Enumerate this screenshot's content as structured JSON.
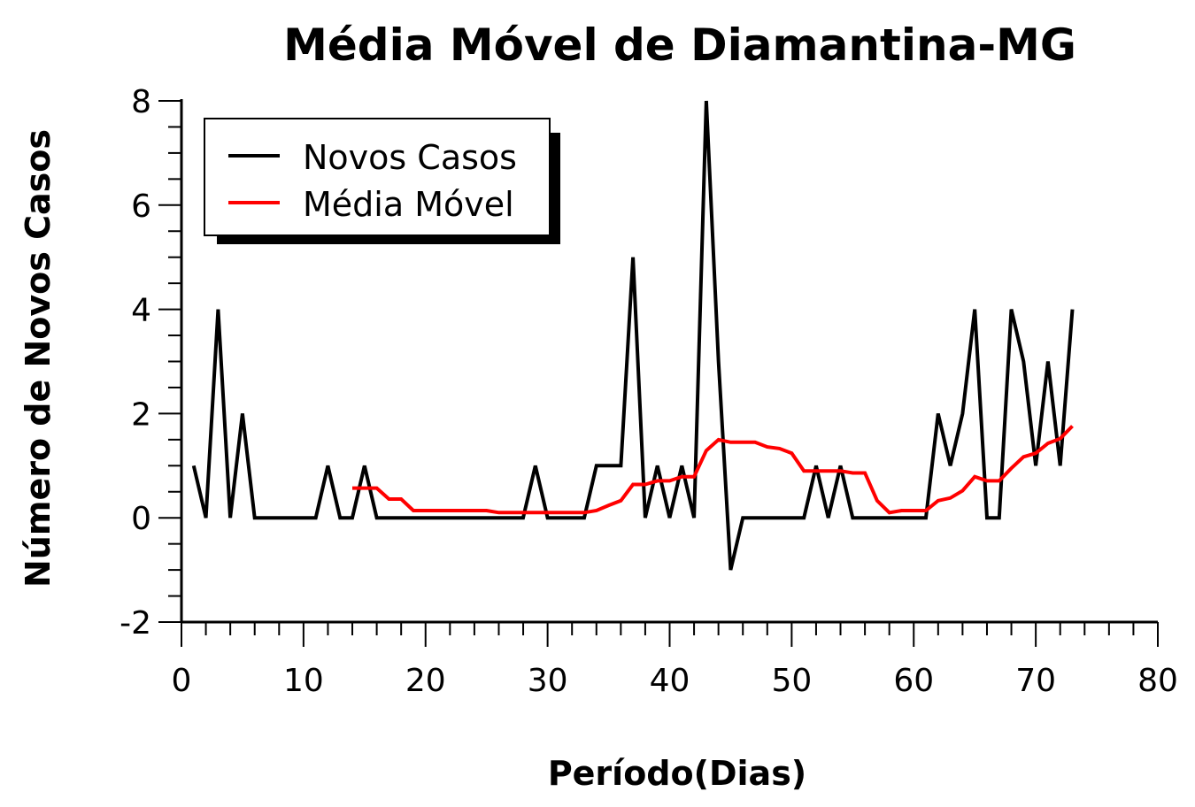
{
  "chart_data": {
    "type": "line",
    "title": "Média Móvel de Diamantina-MG",
    "xlabel": "Período(Dias)",
    "ylabel": "Número de Novos Casos",
    "xlim": [
      0,
      80
    ],
    "ylim": [
      -2,
      8
    ],
    "x_ticks": [
      "0",
      "10",
      "20",
      "30",
      "40",
      "50",
      "60",
      "70",
      "80"
    ],
    "y_ticks": [
      "-2",
      "0",
      "2",
      "4",
      "6",
      "8"
    ],
    "grid": false,
    "legend": {
      "position": "top-left"
    },
    "series": [
      {
        "name": "Novos Casos",
        "color": "#000000",
        "x": [
          1,
          2,
          3,
          4,
          5,
          6,
          7,
          8,
          9,
          10,
          11,
          12,
          13,
          14,
          15,
          16,
          17,
          18,
          19,
          20,
          21,
          22,
          23,
          24,
          25,
          26,
          27,
          28,
          29,
          30,
          31,
          32,
          33,
          34,
          35,
          36,
          37,
          38,
          39,
          40,
          41,
          42,
          43,
          44,
          45,
          46,
          47,
          48,
          49,
          50,
          51,
          52,
          53,
          54,
          55,
          56,
          57,
          58,
          59,
          60,
          61,
          62,
          63,
          64,
          65,
          66,
          67,
          68,
          69,
          70,
          71,
          72,
          73
        ],
        "y": [
          1,
          0,
          4,
          0,
          2,
          0,
          0,
          0,
          0,
          0,
          0,
          1,
          0,
          0,
          1,
          0,
          0,
          0,
          0,
          0,
          0,
          0,
          0,
          0,
          0,
          0,
          0,
          0,
          1,
          0,
          0,
          0,
          0,
          1,
          1,
          1,
          5,
          0,
          1,
          0,
          1,
          0,
          8,
          3,
          -1,
          0,
          0,
          0,
          0,
          0,
          0,
          1,
          0,
          1,
          0,
          0,
          0,
          0,
          0,
          0,
          0,
          2,
          1,
          2,
          4,
          0,
          0,
          4,
          3,
          1,
          3,
          1,
          4
        ]
      },
      {
        "name": "Média Móvel",
        "color": "#ff0000",
        "x": [
          14,
          15,
          16,
          17,
          18,
          19,
          20,
          21,
          22,
          23,
          24,
          25,
          26,
          27,
          28,
          29,
          30,
          31,
          32,
          33,
          34,
          35,
          36,
          37,
          38,
          39,
          40,
          41,
          42,
          43,
          44,
          45,
          46,
          47,
          48,
          49,
          50,
          51,
          52,
          53,
          54,
          55,
          56,
          57,
          58,
          59,
          60,
          61,
          62,
          63,
          64,
          65,
          66,
          67,
          68,
          69,
          70,
          71,
          72,
          73
        ],
        "y": [
          0.57,
          0.57,
          0.57,
          0.36,
          0.36,
          0.14,
          0.14,
          0.14,
          0.14,
          0.14,
          0.14,
          0.14,
          0.1,
          0.1,
          0.1,
          0.1,
          0.1,
          0.1,
          0.1,
          0.1,
          0.14,
          0.24,
          0.33,
          0.64,
          0.64,
          0.71,
          0.71,
          0.79,
          0.79,
          1.29,
          1.5,
          1.45,
          1.45,
          1.45,
          1.36,
          1.33,
          1.24,
          0.9,
          0.9,
          0.9,
          0.9,
          0.86,
          0.86,
          0.33,
          0.1,
          0.14,
          0.14,
          0.14,
          0.33,
          0.38,
          0.52,
          0.79,
          0.71,
          0.71,
          0.95,
          1.17,
          1.24,
          1.43,
          1.52,
          1.76
        ]
      }
    ]
  }
}
